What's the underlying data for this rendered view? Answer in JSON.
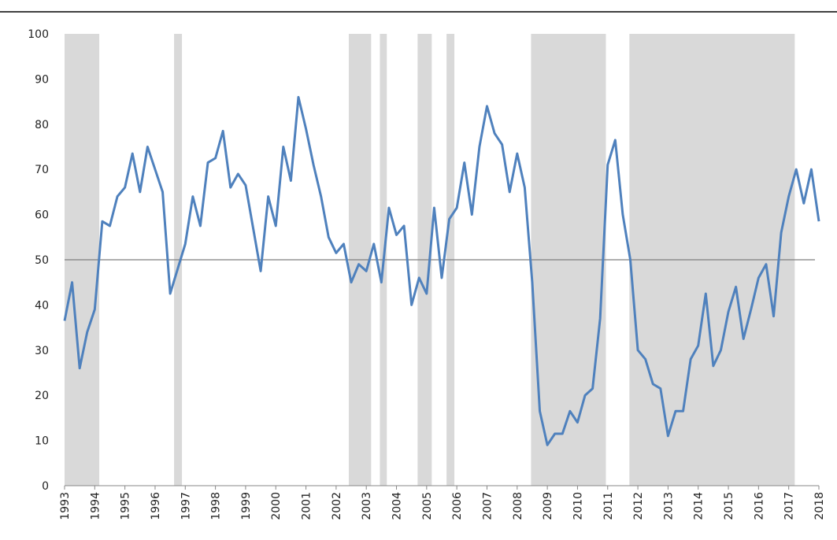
{
  "chart_data": {
    "type": "line",
    "x": [
      1993,
      1993.25,
      1993.5,
      1993.75,
      1994,
      1994.25,
      1994.5,
      1994.75,
      1995,
      1995.25,
      1995.5,
      1995.75,
      1996,
      1996.25,
      1996.5,
      1996.75,
      1997,
      1997.25,
      1997.5,
      1997.75,
      1998,
      1998.25,
      1998.5,
      1998.75,
      1999,
      1999.25,
      1999.5,
      1999.75,
      2000,
      2000.25,
      2000.5,
      2000.75,
      2001,
      2001.25,
      2001.5,
      2001.75,
      2002,
      2002.25,
      2002.5,
      2002.75,
      2003,
      2003.25,
      2003.5,
      2003.75,
      2004,
      2004.25,
      2004.5,
      2004.75,
      2005,
      2005.25,
      2005.5,
      2005.75,
      2006,
      2006.25,
      2006.5,
      2006.75,
      2007,
      2007.25,
      2007.5,
      2007.75,
      2008,
      2008.25,
      2008.5,
      2008.75,
      2009,
      2009.25,
      2009.5,
      2009.75,
      2010,
      2010.25,
      2010.5,
      2010.75,
      2011,
      2011.25,
      2011.5,
      2011.75,
      2012,
      2012.25,
      2012.5,
      2012.75,
      2013,
      2013.25,
      2013.5,
      2013.75,
      2014,
      2014.25,
      2014.5,
      2014.75,
      2015,
      2015.25,
      2015.5,
      2015.75,
      2016,
      2016.25,
      2016.5,
      2016.75,
      2017,
      2017.25,
      2017.5,
      2017.75,
      2018
    ],
    "series": [
      {
        "color": "#4f81bd",
        "values": [
          36.5,
          45,
          26,
          34,
          39,
          58.5,
          57.5,
          64,
          66,
          73.5,
          65,
          75,
          70,
          65,
          42.5,
          48,
          53.5,
          64,
          57.5,
          71.5,
          72.5,
          78.5,
          66,
          69,
          66.5,
          57,
          47.5,
          64,
          57.5,
          75,
          67.5,
          86,
          79,
          71,
          64,
          55,
          51.5,
          53.5,
          45,
          49,
          47.5,
          53.5,
          45,
          61.5,
          55.5,
          57.5,
          40,
          46,
          42.5,
          61.5,
          46,
          59,
          61.5,
          71.5,
          60,
          75,
          84,
          78,
          75.5,
          65,
          73.5,
          66,
          45,
          16.5,
          9,
          11.5,
          11.5,
          16.5,
          14,
          20,
          21.5,
          37,
          71,
          76.5,
          60,
          50,
          30,
          28,
          22.5,
          21.5,
          11,
          16.5,
          16.5,
          28,
          31,
          42.5,
          26.5,
          30,
          38.5,
          44,
          32.5,
          39,
          46,
          49,
          37.5,
          56,
          64,
          70,
          62.5,
          70,
          58.5
        ]
      }
    ],
    "shaded_periods": [
      [
        1993,
        1994.15
      ],
      [
        1996.63,
        1996.89
      ],
      [
        2002.42,
        2003.16
      ],
      [
        2003.45,
        2003.68
      ],
      [
        2004.7,
        2005.17
      ],
      [
        2005.66,
        2005.92
      ],
      [
        2008.46,
        2010.94
      ],
      [
        2011.72,
        2017.2
      ]
    ],
    "shade_color": "#d9d9d9",
    "reference_line": 50,
    "xlim": [
      1993,
      2018
    ],
    "xticks": [
      1993,
      1994,
      1995,
      1996,
      1997,
      1998,
      1999,
      2000,
      2001,
      2002,
      2003,
      2004,
      2005,
      2006,
      2007,
      2008,
      2009,
      2010,
      2011,
      2012,
      2013,
      2014,
      2015,
      2016,
      2017,
      2018
    ],
    "ylim": [
      0,
      100
    ],
    "yticks": [
      0,
      10,
      20,
      30,
      40,
      50,
      60,
      70,
      80,
      90,
      100
    ]
  }
}
